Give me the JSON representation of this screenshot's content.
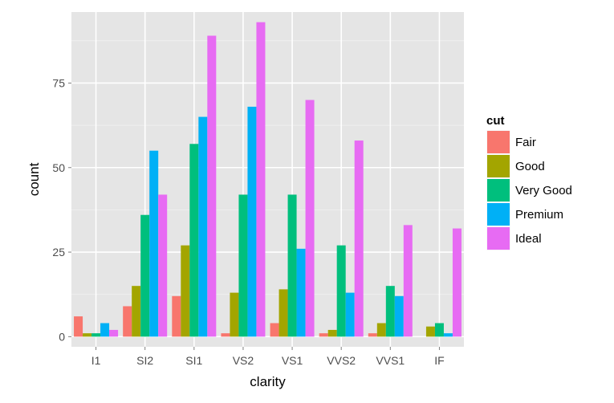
{
  "chart_data": {
    "type": "bar",
    "title": "",
    "xlabel": "clarity",
    "ylabel": "count",
    "categories": [
      "I1",
      "SI2",
      "SI1",
      "VS2",
      "VS1",
      "VVS2",
      "VVS1",
      "IF"
    ],
    "ylim": [
      -3,
      96
    ],
    "yticks": [
      0,
      25,
      50,
      75
    ],
    "ytick_labels": [
      "0",
      "25",
      "50",
      "75"
    ],
    "grid": true,
    "legend": {
      "title": "cut",
      "position": "right"
    },
    "series": [
      {
        "name": "Fair",
        "color": "#F8766D",
        "values": [
          6,
          9,
          12,
          1,
          4,
          1,
          1,
          0
        ]
      },
      {
        "name": "Good",
        "color": "#A3A500",
        "values": [
          1,
          15,
          27,
          13,
          14,
          2,
          4,
          3
        ]
      },
      {
        "name": "Very Good",
        "color": "#00BF7D",
        "values": [
          1,
          36,
          57,
          42,
          42,
          27,
          15,
          4
        ]
      },
      {
        "name": "Premium",
        "color": "#00B0F6",
        "values": [
          4,
          55,
          65,
          68,
          26,
          13,
          12,
          1
        ]
      },
      {
        "name": "Ideal",
        "color": "#E76BF3",
        "values": [
          2,
          42,
          89,
          93,
          70,
          58,
          33,
          32
        ]
      }
    ]
  },
  "colors": {
    "panel_background": "#E5E5E5",
    "grid_major": "#FFFFFF",
    "grid_minor": "#F2F2F2"
  }
}
